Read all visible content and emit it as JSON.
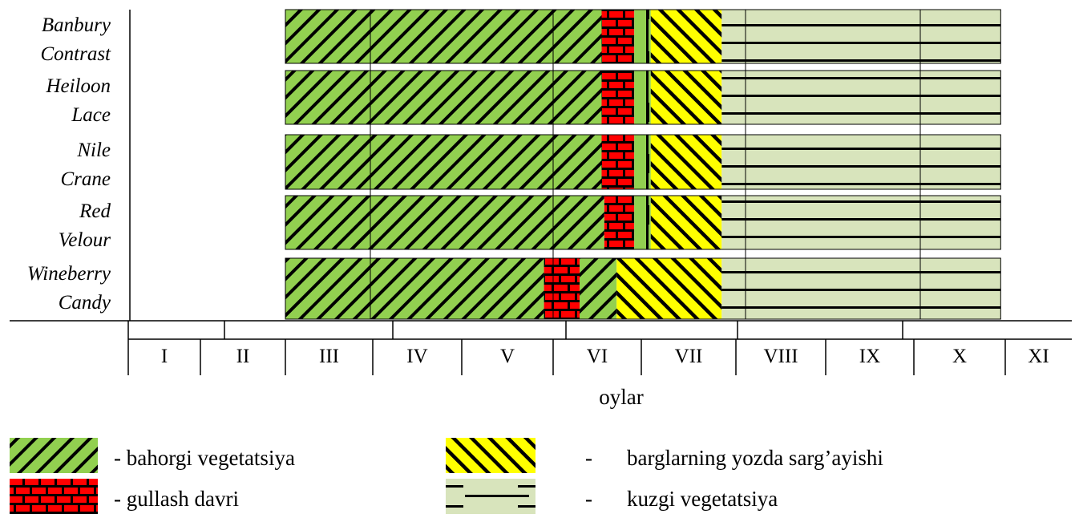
{
  "chart_data": {
    "type": "bar",
    "subtype": "gantt-phenology",
    "xlabel": "oylar",
    "months": [
      "I",
      "II",
      "III",
      "IV",
      "V",
      "VI",
      "VII",
      "VIII",
      "IX",
      "X",
      "XI"
    ],
    "varieties": [
      {
        "label_lines": [
          "Banbury",
          "Contrast"
        ],
        "phases": [
          {
            "phase": "spring",
            "start": 2.0,
            "end": 5.55
          },
          {
            "phase": "flowering",
            "start": 5.55,
            "end": 5.92
          },
          {
            "phase": "flowering_end",
            "start": 5.92,
            "end": 6.1
          },
          {
            "phase": "yellowing",
            "start": 6.1,
            "end": 6.85
          },
          {
            "phase": "autumn",
            "start": 6.85,
            "end": 9.95
          }
        ]
      },
      {
        "label_lines": [
          "Heiloon",
          "Lace"
        ],
        "phases": [
          {
            "phase": "spring",
            "start": 2.0,
            "end": 5.55
          },
          {
            "phase": "flowering",
            "start": 5.55,
            "end": 5.92
          },
          {
            "phase": "flowering_end",
            "start": 5.92,
            "end": 6.1
          },
          {
            "phase": "yellowing",
            "start": 6.1,
            "end": 6.85
          },
          {
            "phase": "autumn",
            "start": 6.85,
            "end": 9.95
          }
        ]
      },
      {
        "label_lines": [
          "Nile",
          "Crane"
        ],
        "phases": [
          {
            "phase": "spring",
            "start": 2.0,
            "end": 5.55
          },
          {
            "phase": "flowering",
            "start": 5.55,
            "end": 5.92
          },
          {
            "phase": "flowering_end",
            "start": 5.92,
            "end": 6.1
          },
          {
            "phase": "yellowing",
            "start": 6.1,
            "end": 6.85
          },
          {
            "phase": "autumn",
            "start": 6.85,
            "end": 9.95
          }
        ]
      },
      {
        "label_lines": [
          "Red",
          "Velour"
        ],
        "phases": [
          {
            "phase": "spring",
            "start": 2.0,
            "end": 5.58
          },
          {
            "phase": "flowering",
            "start": 5.58,
            "end": 5.92
          },
          {
            "phase": "flowering_end",
            "start": 5.92,
            "end": 6.1
          },
          {
            "phase": "yellowing",
            "start": 6.1,
            "end": 6.85
          },
          {
            "phase": "autumn",
            "start": 6.85,
            "end": 9.95
          }
        ]
      },
      {
        "label_lines": [
          "Wineberry",
          "Candy"
        ],
        "phases": [
          {
            "phase": "spring",
            "start": 2.0,
            "end": 4.9
          },
          {
            "phase": "flowering",
            "start": 4.9,
            "end": 5.3
          },
          {
            "phase": "spring",
            "start": 5.3,
            "end": 5.72
          },
          {
            "phase": "yellowing",
            "start": 5.72,
            "end": 6.85
          },
          {
            "phase": "autumn",
            "start": 6.85,
            "end": 9.95
          }
        ]
      }
    ],
    "legend": [
      {
        "key": "spring",
        "label": "- bahorgi vegetatsiya"
      },
      {
        "key": "yellowing",
        "label": "barglarning yozda sarg’ayishi",
        "dash": "-"
      },
      {
        "key": "flowering",
        "label": "- gullash davri"
      },
      {
        "key": "autumn",
        "label": "kuzgi vegetatsiya",
        "dash": "-"
      }
    ],
    "colors": {
      "spring_fill": "#92d050",
      "flowering_fill": "#ff0000",
      "yellowing_fill": "#ffff00",
      "autumn_fill": "#d8e4bc",
      "stroke": "#000000"
    }
  }
}
